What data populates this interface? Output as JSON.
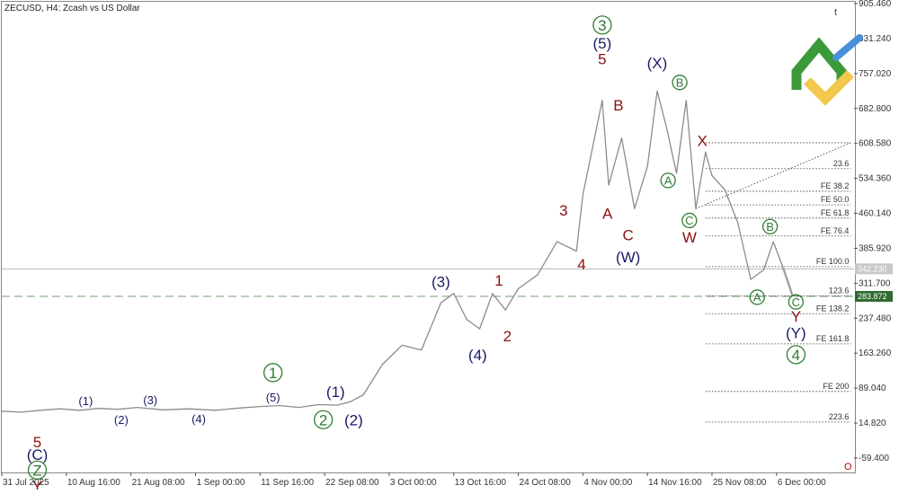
{
  "header": {
    "symbol_text": "ZECUSD, H4:  Zcash vs US Dollar"
  },
  "corner_icon_text": "t",
  "bottom_right_marker": "O",
  "colors": {
    "price_line": "#8c8c8c",
    "dark_blue": "#1a1a66",
    "dark_red": "#8b1010",
    "green": "#2e7d32",
    "dashed_green": "#7fa87f",
    "fib_line": "#333333",
    "current_price_box": "#2e6b2e",
    "bid_box": "#c8c8c8",
    "logo_green": "#3a9a3a",
    "logo_yellow": "#f2c94c",
    "logo_blue": "#4a90d9"
  },
  "chart_data": {
    "type": "line",
    "symbol": "ZECUSD",
    "timeframe": "H4",
    "ylim": [
      -90,
      905.46
    ],
    "y_ticks": [
      905.46,
      831.24,
      757.02,
      682.8,
      608.58,
      534.36,
      460.14,
      385.92,
      311.7,
      237.48,
      163.26,
      89.04,
      14.82,
      -59.4
    ],
    "y_tick_labels": [
      "905.460",
      "831.240",
      "757.020",
      "682.800",
      "608.580",
      "534.360",
      "460.140",
      "385.920",
      "311.700",
      "237.480",
      "163.260",
      "89.040",
      "14.820",
      "-59.400"
    ],
    "x_tick_labels": [
      "31 Jul 2025",
      "10 Aug 16:00",
      "21 Aug 08:00",
      "1 Sep 00:00",
      "11 Sep 16:00",
      "22 Sep 08:00",
      "3 Oct 00:00",
      "13 Oct 16:00",
      "24 Oct 08:00",
      "4 Nov 00:00",
      "14 Nov 16:00",
      "25 Nov 08:00",
      "6 Dec 00:00"
    ],
    "x_tick_index": [
      0,
      1,
      2,
      3,
      4,
      5,
      6,
      7,
      8,
      9,
      10,
      11,
      12
    ],
    "x_max_index": 13.2,
    "price_path": [
      [
        0,
        40
      ],
      [
        0.3,
        38
      ],
      [
        0.6,
        42
      ],
      [
        0.9,
        45
      ],
      [
        1.2,
        42
      ],
      [
        1.5,
        46
      ],
      [
        1.8,
        44
      ],
      [
        2.1,
        48
      ],
      [
        2.5,
        43
      ],
      [
        2.9,
        45
      ],
      [
        3.3,
        42
      ],
      [
        3.7,
        47
      ],
      [
        4.0,
        50
      ],
      [
        4.3,
        52
      ],
      [
        4.6,
        48
      ],
      [
        4.9,
        54
      ],
      [
        5.2,
        53
      ],
      [
        5.4,
        60
      ],
      [
        5.6,
        75
      ],
      [
        5.9,
        140
      ],
      [
        6.2,
        180
      ],
      [
        6.5,
        170
      ],
      [
        6.8,
        270
      ],
      [
        7.0,
        290
      ],
      [
        7.2,
        235
      ],
      [
        7.4,
        215
      ],
      [
        7.6,
        290
      ],
      [
        7.8,
        255
      ],
      [
        8.0,
        300
      ],
      [
        8.3,
        330
      ],
      [
        8.6,
        400
      ],
      [
        8.9,
        380
      ],
      [
        9.0,
        500
      ],
      [
        9.3,
        700
      ],
      [
        9.4,
        520
      ],
      [
        9.6,
        620
      ],
      [
        9.8,
        470
      ],
      [
        10.0,
        560
      ],
      [
        10.15,
        720
      ],
      [
        10.3,
        640
      ],
      [
        10.45,
        545
      ],
      [
        10.6,
        700
      ],
      [
        10.75,
        470
      ],
      [
        10.9,
        590
      ],
      [
        11.0,
        540
      ],
      [
        11.2,
        510
      ],
      [
        11.4,
        440
      ],
      [
        11.6,
        320
      ],
      [
        11.8,
        340
      ],
      [
        11.95,
        400
      ],
      [
        12.1,
        345
      ],
      [
        12.25,
        283.872
      ]
    ],
    "forecast_path": [
      [
        12.1,
        345
      ],
      [
        12.25,
        283.872
      ]
    ],
    "current_price": 283.872,
    "current_price_label": "283.872",
    "bid_price": 342.23,
    "bid_price_label": "342.230",
    "fib_levels": [
      {
        "label": "23.6",
        "value": 555
      },
      {
        "label": "FE 38.2",
        "value": 507
      },
      {
        "label": "FE 50.0",
        "value": 478
      },
      {
        "label": "FE 61.8",
        "value": 450
      },
      {
        "label": "FE 76.4",
        "value": 412
      },
      {
        "label": "FE 100.0",
        "value": 347
      },
      {
        "label": "123.6",
        "value": 285
      },
      {
        "label": "FE 138.2",
        "value": 247
      },
      {
        "label": "FE 161.8",
        "value": 183
      },
      {
        "label": "FE 200",
        "value": 82
      },
      {
        "label": "223.6",
        "value": 17
      }
    ],
    "top_fib_line_value": 610,
    "fib_x_start": 10.9,
    "fib_x_end": 13.15,
    "trend_line": [
      [
        10.75,
        470
      ],
      [
        13.15,
        610
      ]
    ],
    "wave_labels": [
      {
        "text": "5",
        "x": 0.55,
        "y": -25,
        "color": "dark_red",
        "size": "l"
      },
      {
        "text": "(C)",
        "x": 0.55,
        "y": -52,
        "color": "dark_blue",
        "size": "l"
      },
      {
        "text": "Z",
        "x": 0.55,
        "y": -85,
        "color": "green",
        "size": "l",
        "circle": true
      },
      {
        "text": "Y",
        "x": 0.55,
        "y": -118,
        "color": "dark_red",
        "size": "l"
      },
      {
        "text": "(1)",
        "x": 1.3,
        "y": 62,
        "color": "dark_blue",
        "size": "s"
      },
      {
        "text": "(2)",
        "x": 1.85,
        "y": 22,
        "color": "dark_blue",
        "size": "s"
      },
      {
        "text": "(3)",
        "x": 2.3,
        "y": 64,
        "color": "dark_blue",
        "size": "s"
      },
      {
        "text": "(4)",
        "x": 3.05,
        "y": 24,
        "color": "dark_blue",
        "size": "s"
      },
      {
        "text": "1",
        "x": 4.2,
        "y": 122,
        "color": "green",
        "size": "l",
        "circle": true
      },
      {
        "text": "(5)",
        "x": 4.2,
        "y": 70,
        "color": "dark_blue",
        "size": "s"
      },
      {
        "text": "2",
        "x": 4.98,
        "y": 22,
        "color": "green",
        "size": "l",
        "circle": true
      },
      {
        "text": "(1)",
        "x": 5.17,
        "y": 82,
        "color": "dark_blue",
        "size": "l"
      },
      {
        "text": "(2)",
        "x": 5.45,
        "y": 22,
        "color": "dark_blue",
        "size": "l"
      },
      {
        "text": "(3)",
        "x": 6.8,
        "y": 315,
        "color": "dark_blue",
        "size": "l"
      },
      {
        "text": "(4)",
        "x": 7.37,
        "y": 160,
        "color": "dark_blue",
        "size": "l"
      },
      {
        "text": "1",
        "x": 7.7,
        "y": 318,
        "color": "dark_red",
        "size": "l"
      },
      {
        "text": "2",
        "x": 7.83,
        "y": 200,
        "color": "dark_red",
        "size": "l"
      },
      {
        "text": "3",
        "x": 8.7,
        "y": 467,
        "color": "dark_red",
        "size": "l"
      },
      {
        "text": "4",
        "x": 8.98,
        "y": 353,
        "color": "dark_red",
        "size": "l"
      },
      {
        "text": "3",
        "x": 9.3,
        "y": 860,
        "color": "green",
        "size": "l",
        "circle": true
      },
      {
        "text": "(5)",
        "x": 9.3,
        "y": 822,
        "color": "dark_blue",
        "size": "l"
      },
      {
        "text": "5",
        "x": 9.3,
        "y": 788,
        "color": "dark_red",
        "size": "l"
      },
      {
        "text": "B",
        "x": 9.55,
        "y": 690,
        "color": "dark_red",
        "size": "l"
      },
      {
        "text": "A",
        "x": 9.38,
        "y": 460,
        "color": "dark_red",
        "size": "l"
      },
      {
        "text": "C",
        "x": 9.7,
        "y": 415,
        "color": "dark_red",
        "size": "l"
      },
      {
        "text": "(W)",
        "x": 9.7,
        "y": 368,
        "color": "dark_blue",
        "size": "l"
      },
      {
        "text": "(X)",
        "x": 10.15,
        "y": 780,
        "color": "dark_blue",
        "size": "l"
      },
      {
        "text": "B",
        "x": 10.5,
        "y": 738,
        "color": "green",
        "size": "s",
        "circle": true
      },
      {
        "text": "A",
        "x": 10.32,
        "y": 530,
        "color": "green",
        "size": "s",
        "circle": true
      },
      {
        "text": "X",
        "x": 10.85,
        "y": 615,
        "color": "dark_red",
        "size": "l"
      },
      {
        "text": "C",
        "x": 10.65,
        "y": 445,
        "color": "green",
        "size": "s",
        "circle": true
      },
      {
        "text": "W",
        "x": 10.65,
        "y": 410,
        "color": "dark_red",
        "size": "l"
      },
      {
        "text": "B",
        "x": 11.9,
        "y": 432,
        "color": "green",
        "size": "s",
        "circle": true
      },
      {
        "text": "A",
        "x": 11.7,
        "y": 282,
        "color": "green",
        "size": "s",
        "circle": true
      },
      {
        "text": "C",
        "x": 12.3,
        "y": 272,
        "color": "green",
        "size": "s",
        "circle": true
      },
      {
        "text": "Y",
        "x": 12.3,
        "y": 242,
        "color": "dark_red",
        "size": "l"
      },
      {
        "text": "(Y)",
        "x": 12.3,
        "y": 207,
        "color": "dark_blue",
        "size": "l"
      },
      {
        "text": "4",
        "x": 12.3,
        "y": 160,
        "color": "green",
        "size": "l",
        "circle": true
      }
    ]
  }
}
